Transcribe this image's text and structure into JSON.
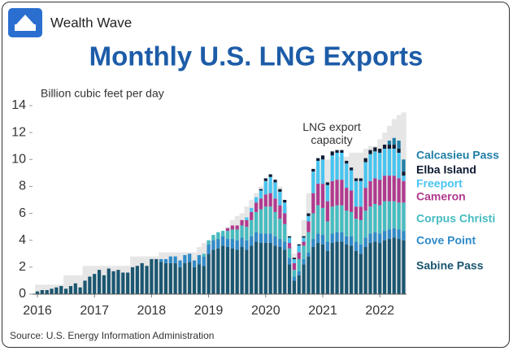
{
  "brand": "Wealth Wave",
  "chart_data": {
    "type": "stacked_bar",
    "title": "Monthly U.S. LNG Exports",
    "y_label": "Billion cubic feet per day",
    "source": "Source: U.S. Energy Information Administration",
    "categories": [
      "2016",
      null,
      null,
      null,
      null,
      null,
      null,
      null,
      null,
      null,
      null,
      null,
      "2017",
      null,
      null,
      null,
      null,
      null,
      null,
      null,
      null,
      null,
      null,
      null,
      "2018",
      null,
      null,
      null,
      null,
      null,
      null,
      null,
      null,
      null,
      null,
      null,
      "2019",
      null,
      null,
      null,
      null,
      null,
      null,
      null,
      null,
      null,
      null,
      null,
      "2020",
      null,
      null,
      null,
      null,
      null,
      null,
      null,
      null,
      null,
      null,
      null,
      "2021",
      null,
      null,
      null,
      null,
      null,
      null,
      null,
      null,
      null,
      null,
      null,
      "2022",
      null,
      null,
      null,
      null,
      null
    ],
    "ylim": [
      0,
      14
    ],
    "yticks": [
      0,
      2,
      4,
      6,
      8,
      10,
      12,
      14
    ],
    "series": [
      {
        "name": "Sabine Pass",
        "color": "#1a5670",
        "values": [
          0.2,
          0.3,
          0.3,
          0.4,
          0.5,
          0.6,
          0.4,
          0.6,
          0.8,
          0.5,
          1.0,
          1.3,
          1.5,
          1.8,
          1.4,
          1.9,
          1.7,
          1.8,
          1.6,
          1.6,
          2.0,
          2.1,
          2.3,
          2.1,
          2.6,
          2.6,
          2.4,
          2.3,
          2.3,
          2.3,
          2.0,
          2.3,
          2.4,
          2.0,
          2.2,
          2.1,
          3.0,
          3.3,
          3.4,
          3.6,
          3.5,
          3.4,
          3.3,
          3.5,
          3.3,
          3.6,
          3.9,
          3.8,
          3.8,
          3.8,
          3.6,
          3.5,
          3.3,
          2.2,
          1.0,
          1.4,
          2.2,
          2.8,
          3.5,
          3.8,
          3.7,
          3.2,
          3.8,
          3.9,
          3.9,
          3.7,
          3.6,
          3.2,
          3.0,
          3.5,
          3.8,
          3.9,
          3.8,
          4.0,
          4.1,
          4.2,
          4.1,
          4.0
        ]
      },
      {
        "name": "Cove Point",
        "color": "#2f8ac8",
        "values": [
          0,
          0,
          0,
          0,
          0,
          0,
          0,
          0,
          0,
          0,
          0,
          0,
          0,
          0,
          0,
          0,
          0,
          0,
          0,
          0,
          0,
          0,
          0,
          0,
          0,
          0,
          0.2,
          0.3,
          0.5,
          0.5,
          0.5,
          0.6,
          0.6,
          0.5,
          0.7,
          0.7,
          0.7,
          0.7,
          0.7,
          0.7,
          0.6,
          0.7,
          0.7,
          0.7,
          0.7,
          0.7,
          0.7,
          0.7,
          0.7,
          0.7,
          0.7,
          0.6,
          0.6,
          0.5,
          0.3,
          0.3,
          0.4,
          0.3,
          0.6,
          0.7,
          0.7,
          0.7,
          0.7,
          0.7,
          0.7,
          0.6,
          0.7,
          0.7,
          0.7,
          0.7,
          0.7,
          0.7,
          0.7,
          0.7,
          0.7,
          0.7,
          0.7,
          0.7
        ]
      },
      {
        "name": "Corpus Christi",
        "color": "#45bcc0",
        "values": [
          0,
          0,
          0,
          0,
          0,
          0,
          0,
          0,
          0,
          0,
          0,
          0,
          0,
          0,
          0,
          0,
          0,
          0,
          0,
          0,
          0,
          0,
          0,
          0,
          0,
          0,
          0,
          0,
          0,
          0,
          0,
          0,
          0,
          0,
          0,
          0.2,
          0.3,
          0.4,
          0.5,
          0.4,
          0.6,
          0.7,
          0.8,
          0.9,
          1.0,
          1.2,
          1.5,
          1.8,
          2.0,
          2.0,
          1.8,
          1.5,
          1.3,
          0.7,
          0.5,
          0.9,
          1.0,
          1.5,
          1.9,
          2.1,
          2.0,
          1.5,
          2.0,
          2.0,
          2.0,
          1.9,
          1.8,
          1.7,
          1.8,
          2.0,
          2.0,
          2.1,
          2.1,
          2.2,
          2.1,
          2.0,
          2.0,
          2.1
        ]
      },
      {
        "name": "Cameron",
        "color": "#b03a8e",
        "values": [
          0,
          0,
          0,
          0,
          0,
          0,
          0,
          0,
          0,
          0,
          0,
          0,
          0,
          0,
          0,
          0,
          0,
          0,
          0,
          0,
          0,
          0,
          0,
          0,
          0,
          0,
          0,
          0,
          0,
          0,
          0,
          0,
          0,
          0,
          0,
          0,
          0,
          0,
          0,
          0,
          0.2,
          0.3,
          0.3,
          0.4,
          0.5,
          0.6,
          0.7,
          0.8,
          0.9,
          1.0,
          1.0,
          1.0,
          0.8,
          0.4,
          0.5,
          0.5,
          0.3,
          0.8,
          1.5,
          1.6,
          1.8,
          1.5,
          1.9,
          1.9,
          1.9,
          1.7,
          1.6,
          0.9,
          1.0,
          1.7,
          1.9,
          1.9,
          1.9,
          1.9,
          1.9,
          1.9,
          1.8,
          1.6
        ]
      },
      {
        "name": "Freeport",
        "color": "#48c4f0",
        "values": [
          0,
          0,
          0,
          0,
          0,
          0,
          0,
          0,
          0,
          0,
          0,
          0,
          0,
          0,
          0,
          0,
          0,
          0,
          0,
          0,
          0,
          0,
          0,
          0,
          0,
          0,
          0,
          0,
          0,
          0,
          0,
          0,
          0,
          0,
          0,
          0,
          0,
          0,
          0,
          0,
          0,
          0,
          0,
          0,
          0.2,
          0.3,
          0.4,
          0.6,
          1.0,
          1.2,
          1.2,
          1.0,
          0.8,
          0.4,
          0.3,
          0.5,
          0.3,
          0.4,
          1.6,
          1.7,
          1.8,
          1.2,
          1.9,
          2.0,
          2.0,
          1.8,
          1.5,
          1.9,
          1.9,
          1.9,
          2.0,
          2.0,
          2.0,
          2.0,
          2.0,
          2.0,
          1.9,
          0.4
        ]
      },
      {
        "name": "Elba Island",
        "color": "#0e1b33",
        "values": [
          0,
          0,
          0,
          0,
          0,
          0,
          0,
          0,
          0,
          0,
          0,
          0,
          0,
          0,
          0,
          0,
          0,
          0,
          0,
          0,
          0,
          0,
          0,
          0,
          0,
          0,
          0,
          0,
          0,
          0,
          0,
          0,
          0,
          0,
          0,
          0,
          0,
          0,
          0,
          0,
          0,
          0,
          0,
          0,
          0,
          0,
          0,
          0.1,
          0.2,
          0.2,
          0.2,
          0.2,
          0.2,
          0.1,
          0.1,
          0.1,
          0.1,
          0.2,
          0.2,
          0.2,
          0.3,
          0.2,
          0.3,
          0.2,
          0.2,
          0.2,
          0.2,
          0.2,
          0.2,
          0.3,
          0.3,
          0.3,
          0.3,
          0.3,
          0.3,
          0.3,
          0.3,
          0.3
        ]
      },
      {
        "name": "Calcasieu Pass",
        "color": "#1f7fa6",
        "values": [
          0,
          0,
          0,
          0,
          0,
          0,
          0,
          0,
          0,
          0,
          0,
          0,
          0,
          0,
          0,
          0,
          0,
          0,
          0,
          0,
          0,
          0,
          0,
          0,
          0,
          0,
          0,
          0,
          0,
          0,
          0,
          0,
          0,
          0,
          0,
          0,
          0,
          0,
          0,
          0,
          0,
          0,
          0,
          0,
          0,
          0,
          0,
          0,
          0,
          0,
          0,
          0,
          0,
          0,
          0,
          0,
          0,
          0,
          0,
          0,
          0,
          0,
          0,
          0,
          0,
          0,
          0,
          0,
          0,
          0,
          0,
          0,
          0,
          0,
          0.3,
          0.5,
          0.6,
          0.9
        ]
      }
    ],
    "capacity": {
      "name": "LNG export capacity",
      "color": "#e6e6e6",
      "values": [
        0.7,
        0.7,
        0.7,
        0.7,
        0.7,
        0.7,
        1.4,
        1.4,
        1.4,
        1.4,
        2.1,
        2.1,
        2.1,
        2.1,
        2.1,
        2.1,
        2.1,
        2.1,
        2.1,
        2.1,
        2.8,
        2.8,
        2.8,
        2.8,
        2.8,
        2.8,
        3.1,
        3.1,
        3.1,
        3.1,
        3.1,
        3.1,
        3.1,
        3.1,
        3.5,
        3.8,
        4.0,
        4.2,
        4.5,
        4.5,
        5.0,
        5.5,
        5.8,
        6.0,
        6.5,
        7.0,
        7.5,
        8.0,
        8.3,
        8.3,
        8.3,
        8.0,
        6.5,
        3.5,
        3.0,
        3.5,
        5.5,
        7.5,
        9.0,
        9.5,
        10.0,
        10.0,
        10.0,
        10.2,
        10.2,
        10.2,
        10.5,
        10.5,
        10.5,
        10.8,
        11.0,
        11.0,
        11.5,
        12.0,
        12.5,
        13.0,
        13.3,
        13.5
      ]
    }
  }
}
